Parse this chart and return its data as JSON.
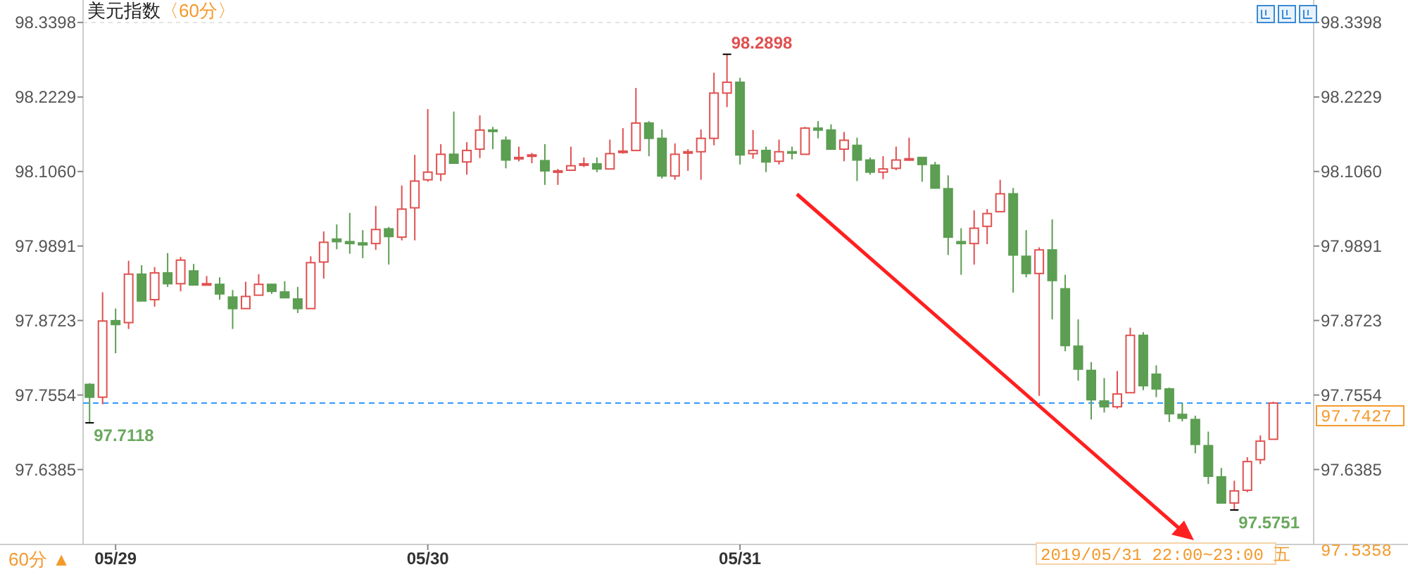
{
  "chart_data": {
    "type": "candlestick",
    "title": "美元指数",
    "subtitle": "〈60分〉",
    "categories": [
      null,
      null,
      "05/29",
      null,
      null,
      null,
      null,
      null,
      null,
      null,
      null,
      null,
      null,
      null,
      null,
      null,
      null,
      null,
      null,
      null,
      null,
      null,
      null,
      null,
      null,
      null,
      "05/30",
      null,
      null,
      null,
      null,
      null,
      null,
      null,
      null,
      null,
      null,
      null,
      null,
      null,
      null,
      null,
      null,
      null,
      null,
      null,
      null,
      null,
      null,
      null,
      "05/31",
      null,
      null,
      null,
      null,
      null,
      null,
      null,
      null,
      null,
      null,
      null,
      null,
      null,
      null,
      null,
      null,
      null,
      null,
      null,
      null,
      null,
      null,
      null,
      null,
      null,
      null,
      null,
      null,
      null,
      null,
      null,
      null,
      null,
      null,
      null,
      null,
      null,
      null,
      null,
      null,
      null
    ],
    "ohlc": [
      [
        97.772,
        97.774,
        97.7118,
        97.752
      ],
      [
        97.752,
        97.9165,
        97.741,
        97.8715
      ],
      [
        97.872,
        97.891,
        97.821,
        97.866
      ],
      [
        97.869,
        97.966,
        97.859,
        97.945
      ],
      [
        97.945,
        97.959,
        97.903,
        97.903
      ],
      [
        97.905,
        97.956,
        97.894,
        97.947
      ],
      [
        97.947,
        97.978,
        97.925,
        97.93
      ],
      [
        97.93,
        97.972,
        97.918,
        97.967
      ],
      [
        97.95,
        97.961,
        97.928,
        97.928
      ],
      [
        97.928,
        97.942,
        97.928,
        97.93
      ],
      [
        97.929,
        97.94,
        97.905,
        97.914
      ],
      [
        97.909,
        97.92,
        97.859,
        97.891
      ],
      [
        97.891,
        97.933,
        97.891,
        97.91
      ],
      [
        97.912,
        97.945,
        97.912,
        97.929
      ],
      [
        97.929,
        97.93,
        97.914,
        97.918
      ],
      [
        97.917,
        97.934,
        97.908,
        97.908
      ],
      [
        97.906,
        97.925,
        97.884,
        97.891
      ],
      [
        97.891,
        97.973,
        97.891,
        97.963
      ],
      [
        97.964,
        98.012,
        97.938,
        97.995
      ],
      [
        98.0,
        98.023,
        97.984,
        97.996
      ],
      [
        97.996,
        98.041,
        97.977,
        97.993
      ],
      [
        97.994,
        98.014,
        97.97,
        97.991
      ],
      [
        97.993,
        98.052,
        97.983,
        98.015
      ],
      [
        98.016,
        98.019,
        97.96,
        98.004
      ],
      [
        98.003,
        98.084,
        97.998,
        98.047
      ],
      [
        98.049,
        98.132,
        97.998,
        98.091
      ],
      [
        98.093,
        98.204,
        98.09,
        98.105
      ],
      [
        98.102,
        98.149,
        98.091,
        98.133
      ],
      [
        98.133,
        98.2,
        98.119,
        98.119
      ],
      [
        98.121,
        98.152,
        98.101,
        98.139
      ],
      [
        98.141,
        98.194,
        98.127,
        98.171
      ],
      [
        98.171,
        98.176,
        98.141,
        98.169
      ],
      [
        98.155,
        98.161,
        98.111,
        98.124
      ],
      [
        98.126,
        98.145,
        98.122,
        98.128
      ],
      [
        98.13,
        98.135,
        98.119,
        98.132
      ],
      [
        98.123,
        98.149,
        98.085,
        98.107
      ],
      [
        98.105,
        98.11,
        98.085,
        98.107
      ],
      [
        98.108,
        98.145,
        98.108,
        98.115
      ],
      [
        98.116,
        98.128,
        98.113,
        98.118
      ],
      [
        98.118,
        98.128,
        98.105,
        98.11
      ],
      [
        98.11,
        98.156,
        98.11,
        98.134
      ],
      [
        98.136,
        98.174,
        98.134,
        98.138
      ],
      [
        98.139,
        98.237,
        98.139,
        98.182
      ],
      [
        98.182,
        98.185,
        98.13,
        98.158
      ],
      [
        98.158,
        98.172,
        98.095,
        98.099
      ],
      [
        98.099,
        98.15,
        98.093,
        98.133
      ],
      [
        98.135,
        98.141,
        98.107,
        98.137
      ],
      [
        98.137,
        98.172,
        98.093,
        98.158
      ],
      [
        98.158,
        98.261,
        98.147,
        98.229
      ],
      [
        98.229,
        98.2898,
        98.207,
        98.246
      ],
      [
        98.246,
        98.253,
        98.117,
        98.132
      ],
      [
        98.134,
        98.171,
        98.126,
        98.139
      ],
      [
        98.139,
        98.145,
        98.105,
        98.121
      ],
      [
        98.122,
        98.156,
        98.117,
        98.137
      ],
      [
        98.137,
        98.145,
        98.125,
        98.135
      ],
      [
        98.133,
        98.176,
        98.133,
        98.174
      ],
      [
        98.174,
        98.185,
        98.158,
        98.171
      ],
      [
        98.171,
        98.18,
        98.141,
        98.141
      ],
      [
        98.141,
        98.168,
        98.122,
        98.155
      ],
      [
        98.147,
        98.159,
        98.091,
        98.124
      ],
      [
        98.124,
        98.128,
        98.101,
        98.105
      ],
      [
        98.105,
        98.13,
        98.094,
        98.11
      ],
      [
        98.111,
        98.145,
        98.108,
        98.124
      ],
      [
        98.124,
        98.159,
        98.123,
        98.126
      ],
      [
        98.128,
        98.129,
        98.09,
        98.117
      ],
      [
        98.116,
        98.121,
        98.079,
        98.08
      ],
      [
        98.079,
        98.1,
        97.975,
        98.003
      ],
      [
        97.996,
        98.017,
        97.944,
        97.993
      ],
      [
        97.993,
        98.045,
        97.96,
        98.017
      ],
      [
        98.02,
        98.047,
        97.992,
        98.04
      ],
      [
        98.043,
        98.093,
        98.043,
        98.071
      ],
      [
        98.071,
        98.08,
        97.916,
        97.975
      ],
      [
        97.973,
        98.014,
        97.94,
        97.946
      ],
      [
        97.946,
        97.987,
        97.754,
        97.983
      ],
      [
        97.983,
        98.031,
        97.874,
        97.935
      ],
      [
        97.922,
        97.944,
        97.824,
        97.833
      ],
      [
        97.832,
        97.874,
        97.778,
        97.796
      ],
      [
        97.794,
        97.807,
        97.717,
        97.748
      ],
      [
        97.746,
        97.782,
        97.728,
        97.737
      ],
      [
        97.737,
        97.793,
        97.734,
        97.757
      ],
      [
        97.759,
        97.861,
        97.759,
        97.849
      ],
      [
        97.849,
        97.854,
        97.763,
        97.77
      ],
      [
        97.788,
        97.802,
        97.752,
        97.765
      ],
      [
        97.765,
        97.767,
        97.713,
        97.726
      ],
      [
        97.725,
        97.743,
        97.714,
        97.719
      ],
      [
        97.717,
        97.723,
        97.664,
        97.678
      ],
      [
        97.676,
        97.698,
        97.616,
        97.628
      ],
      [
        97.627,
        97.641,
        97.586,
        97.586
      ],
      [
        97.586,
        97.621,
        97.5751,
        97.605
      ],
      [
        97.606,
        97.658,
        97.603,
        97.651
      ],
      [
        97.654,
        97.692,
        97.647,
        97.683
      ],
      [
        97.686,
        97.745,
        97.686,
        97.7427
      ]
    ],
    "colors": [
      "#5c9e52",
      "#e05050",
      "#5c9e52",
      "#e05050",
      "#5c9e52",
      "#e05050",
      "#5c9e52",
      "#e05050",
      "#5c9e52",
      "#e05050",
      "#5c9e52",
      "#5c9e52",
      "#e05050",
      "#e05050",
      "#5c9e52",
      "#5c9e52",
      "#5c9e52",
      "#e05050",
      "#e05050",
      "#5c9e52",
      "#5c9e52",
      "#5c9e52",
      "#e05050",
      "#5c9e52",
      "#e05050",
      "#e05050",
      "#e05050",
      "#e05050",
      "#5c9e52",
      "#e05050",
      "#e05050",
      "#5c9e52",
      "#5c9e52",
      "#e05050",
      "#e05050",
      "#5c9e52",
      "#e05050",
      "#e05050",
      "#e05050",
      "#5c9e52",
      "#e05050",
      "#e05050",
      "#e05050",
      "#5c9e52",
      "#5c9e52",
      "#e05050",
      "#e05050",
      "#e05050",
      "#e05050",
      "#e05050",
      "#5c9e52",
      "#e05050",
      "#5c9e52",
      "#e05050",
      "#5c9e52",
      "#e05050",
      "#5c9e52",
      "#5c9e52",
      "#e05050",
      "#5c9e52",
      "#5c9e52",
      "#e05050",
      "#e05050",
      "#e05050",
      "#5c9e52",
      "#5c9e52",
      "#5c9e52",
      "#5c9e52",
      "#e05050",
      "#e05050",
      "#e05050",
      "#5c9e52",
      "#5c9e52",
      "#e05050",
      "#5c9e52",
      "#5c9e52",
      "#5c9e52",
      "#5c9e52",
      "#5c9e52",
      "#e05050",
      "#e05050",
      "#5c9e52",
      "#5c9e52",
      "#5c9e52",
      "#5c9e52",
      "#5c9e52",
      "#5c9e52",
      "#5c9e52",
      "#e05050",
      "#e05050",
      "#e05050",
      "#e05050"
    ],
    "ylim": [
      97.521,
      98.375
    ],
    "yticks": [
      97.6385,
      97.7554,
      97.8723,
      97.9891,
      {
        "value": 98.106,
        "label": "98.1060"
      },
      98.2229,
      98.3398
    ],
    "y2lim": [
      97.521,
      98.375
    ],
    "y2ticks": [
      97.6385,
      97.7554,
      97.8723,
      97.9891,
      {
        "value": 98.106,
        "label": "98.1060"
      },
      98.2229,
      98.3398
    ],
    "ref_lines": [
      {
        "axis": "y2",
        "value": 97.7427,
        "label": "97.7427",
        "color": "#3399ff",
        "line_style": "dashed"
      }
    ],
    "annotations": [
      "98.2898",
      "97.7118",
      "97.5751",
      "60分 ▲",
      "2019/05/31 22:00~23:00 五",
      "97.5358"
    ]
  }
}
